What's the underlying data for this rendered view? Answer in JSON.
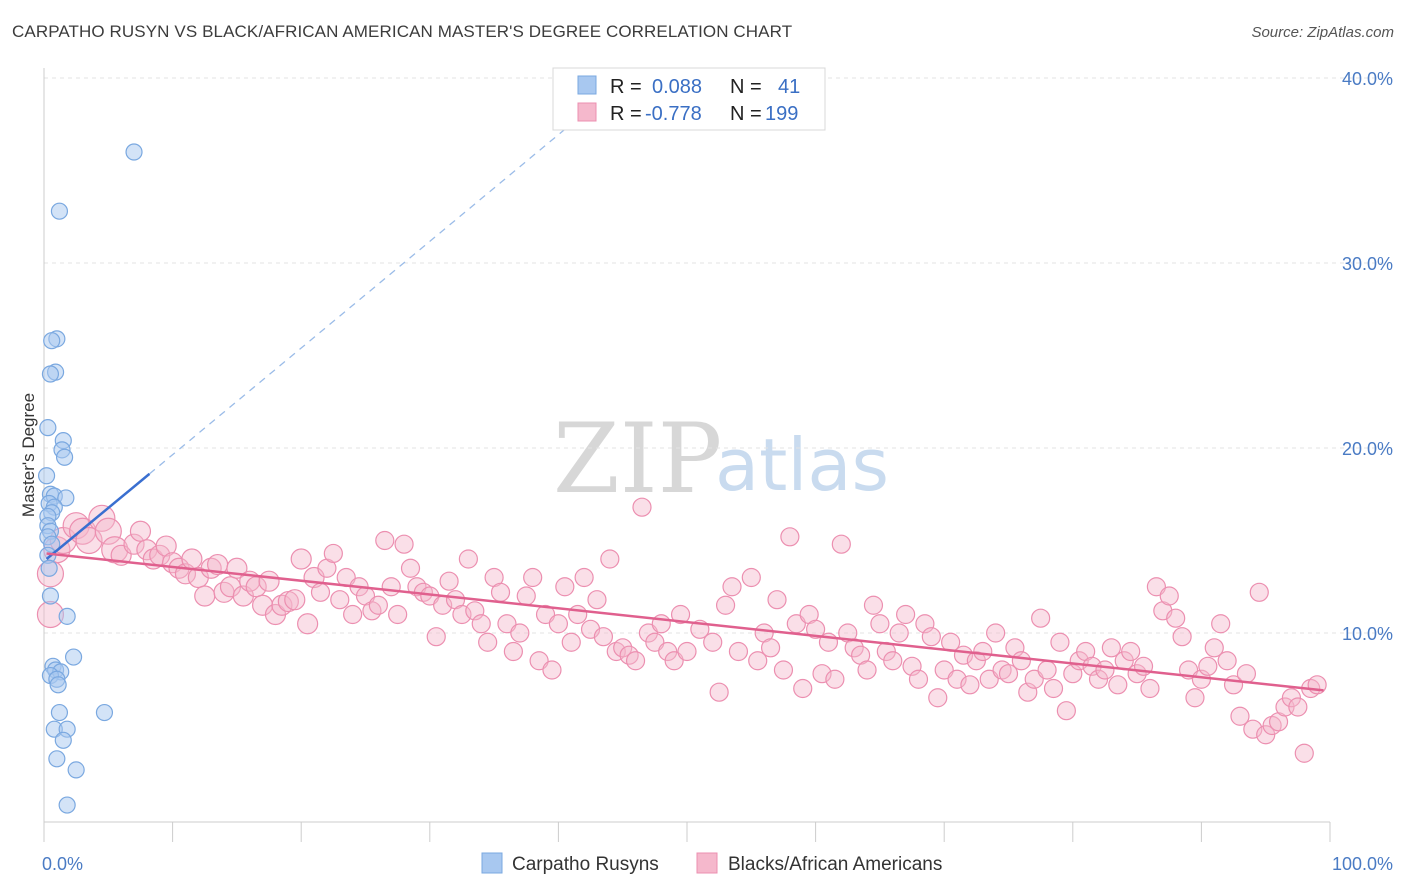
{
  "title": "CARPATHO RUSYN VS BLACK/AFRICAN AMERICAN MASTER'S DEGREE CORRELATION CHART",
  "source": "Source: ZipAtlas.com",
  "watermark": {
    "zip": "ZIP",
    "atlas": "atlas"
  },
  "legend": {
    "rows": [
      {
        "r_label": "R =",
        "r_value": "0.088",
        "n_label": "N =",
        "n_value": "41",
        "color": "#a8c8f0"
      },
      {
        "r_label": "R =",
        "r_value": "-0.778",
        "n_label": "N =",
        "n_value": "199",
        "color": "#f5b8cc"
      }
    ]
  },
  "bottom_legend": [
    {
      "label": "Carpatho Rusyns",
      "color": "#a8c8f0"
    },
    {
      "label": "Blacks/African Americans",
      "color": "#f5b8cc"
    }
  ],
  "chart_data": {
    "type": "scatter",
    "ylabel": "Master's Degree",
    "xlim": [
      0,
      100
    ],
    "ylim": [
      0,
      40
    ],
    "x_tick_labels": [
      "0.0%",
      "100.0%"
    ],
    "y_ticks": [
      10,
      20,
      30,
      40
    ],
    "y_tick_labels": [
      "10.0%",
      "20.0%",
      "30.0%",
      "40.0%"
    ],
    "grid": true,
    "legend_position": "top-center",
    "colors": {
      "blue": "#7aa8e0",
      "pink": "#ec8fb0",
      "blue_line": "#3a6fd0",
      "pink_line": "#e0608e"
    },
    "series": [
      {
        "name": "Carpatho Rusyns",
        "points": [
          [
            7,
            36.0
          ],
          [
            1.2,
            32.8
          ],
          [
            1.0,
            25.9
          ],
          [
            0.6,
            25.8
          ],
          [
            0.9,
            24.1
          ],
          [
            0.5,
            24.0
          ],
          [
            0.3,
            21.1
          ],
          [
            1.5,
            20.4
          ],
          [
            1.4,
            19.9
          ],
          [
            1.6,
            19.5
          ],
          [
            0.2,
            18.5
          ],
          [
            0.5,
            17.5
          ],
          [
            0.8,
            17.4
          ],
          [
            1.7,
            17.3
          ],
          [
            0.4,
            17.0
          ],
          [
            0.8,
            16.8
          ],
          [
            0.6,
            16.5
          ],
          [
            0.3,
            16.3
          ],
          [
            0.3,
            15.8
          ],
          [
            0.5,
            15.5
          ],
          [
            0.3,
            15.2
          ],
          [
            0.6,
            14.8
          ],
          [
            0.3,
            14.2
          ],
          [
            0.4,
            13.5
          ],
          [
            0.5,
            12.0
          ],
          [
            1.8,
            10.9
          ],
          [
            2.3,
            8.7
          ],
          [
            0.7,
            8.2
          ],
          [
            0.9,
            8.0
          ],
          [
            1.3,
            7.9
          ],
          [
            0.5,
            7.7
          ],
          [
            1.0,
            7.5
          ],
          [
            1.1,
            7.2
          ],
          [
            4.7,
            5.7
          ],
          [
            1.2,
            5.7
          ],
          [
            0.8,
            4.8
          ],
          [
            1.8,
            4.8
          ],
          [
            1.5,
            4.2
          ],
          [
            1.0,
            3.2
          ],
          [
            2.5,
            2.6
          ],
          [
            1.8,
            0.7
          ]
        ]
      },
      {
        "name": "Blacks/African Americans",
        "points": [
          [
            0.5,
            13.2
          ],
          [
            0.5,
            11.0
          ],
          [
            1.0,
            14.5
          ],
          [
            1.5,
            15.0
          ],
          [
            2.5,
            15.8
          ],
          [
            3.0,
            15.5
          ],
          [
            3.5,
            15.0
          ],
          [
            4.5,
            16.2
          ],
          [
            5.0,
            15.5
          ],
          [
            5.5,
            14.5
          ],
          [
            6.0,
            14.2
          ],
          [
            7.0,
            14.8
          ],
          [
            7.5,
            15.5
          ],
          [
            8.0,
            14.5
          ],
          [
            8.5,
            14.0
          ],
          [
            9.0,
            14.2
          ],
          [
            9.5,
            14.7
          ],
          [
            10.0,
            13.8
          ],
          [
            10.5,
            13.5
          ],
          [
            11.0,
            13.2
          ],
          [
            11.5,
            14.0
          ],
          [
            12.0,
            13.0
          ],
          [
            12.5,
            12.0
          ],
          [
            13.0,
            13.5
          ],
          [
            13.5,
            13.7
          ],
          [
            14.0,
            12.2
          ],
          [
            14.5,
            12.5
          ],
          [
            15.0,
            13.5
          ],
          [
            15.5,
            12.0
          ],
          [
            16.0,
            12.8
          ],
          [
            16.5,
            12.5
          ],
          [
            17.0,
            11.5
          ],
          [
            17.5,
            12.8
          ],
          [
            18.0,
            11.0
          ],
          [
            18.5,
            11.5
          ],
          [
            19.0,
            11.7
          ],
          [
            19.5,
            11.8
          ],
          [
            20.0,
            14.0
          ],
          [
            20.5,
            10.5
          ],
          [
            21.0,
            13.0
          ],
          [
            21.5,
            12.2
          ],
          [
            22.0,
            13.5
          ],
          [
            22.5,
            14.3
          ],
          [
            23.0,
            11.8
          ],
          [
            23.5,
            13.0
          ],
          [
            24.0,
            11.0
          ],
          [
            24.5,
            12.5
          ],
          [
            25.0,
            12.0
          ],
          [
            25.5,
            11.2
          ],
          [
            26.0,
            11.5
          ],
          [
            26.5,
            15.0
          ],
          [
            27.0,
            12.5
          ],
          [
            27.5,
            11.0
          ],
          [
            28.0,
            14.8
          ],
          [
            28.5,
            13.5
          ],
          [
            29.0,
            12.5
          ],
          [
            29.5,
            12.2
          ],
          [
            30.0,
            12.0
          ],
          [
            30.5,
            9.8
          ],
          [
            31.0,
            11.5
          ],
          [
            31.5,
            12.8
          ],
          [
            32.0,
            11.8
          ],
          [
            32.5,
            11.0
          ],
          [
            33.0,
            14.0
          ],
          [
            33.5,
            11.2
          ],
          [
            34.0,
            10.5
          ],
          [
            34.5,
            9.5
          ],
          [
            35.0,
            13.0
          ],
          [
            35.5,
            12.2
          ],
          [
            36.0,
            10.5
          ],
          [
            36.5,
            9.0
          ],
          [
            37.0,
            10.0
          ],
          [
            37.5,
            12.0
          ],
          [
            38.0,
            13.0
          ],
          [
            38.5,
            8.5
          ],
          [
            39.0,
            11.0
          ],
          [
            39.5,
            8.0
          ],
          [
            40.0,
            10.5
          ],
          [
            40.5,
            12.5
          ],
          [
            41.0,
            9.5
          ],
          [
            41.5,
            11.0
          ],
          [
            42.0,
            13.0
          ],
          [
            42.5,
            10.2
          ],
          [
            43.0,
            11.8
          ],
          [
            43.5,
            9.8
          ],
          [
            44.0,
            14.0
          ],
          [
            44.5,
            9.0
          ],
          [
            45.0,
            9.2
          ],
          [
            45.5,
            8.8
          ],
          [
            46.0,
            8.5
          ],
          [
            46.5,
            16.8
          ],
          [
            47.0,
            10.0
          ],
          [
            47.5,
            9.5
          ],
          [
            48.0,
            10.5
          ],
          [
            48.5,
            9.0
          ],
          [
            49.0,
            8.5
          ],
          [
            49.5,
            11.0
          ],
          [
            50.0,
            9.0
          ],
          [
            51.0,
            10.2
          ],
          [
            52.0,
            9.5
          ],
          [
            52.5,
            6.8
          ],
          [
            53.0,
            11.5
          ],
          [
            53.5,
            12.5
          ],
          [
            54.0,
            9.0
          ],
          [
            55.0,
            13.0
          ],
          [
            55.5,
            8.5
          ],
          [
            56.0,
            10.0
          ],
          [
            56.5,
            9.2
          ],
          [
            57.0,
            11.8
          ],
          [
            57.5,
            8.0
          ],
          [
            58.0,
            15.2
          ],
          [
            58.5,
            10.5
          ],
          [
            59.0,
            7.0
          ],
          [
            59.5,
            11.0
          ],
          [
            60.0,
            10.2
          ],
          [
            60.5,
            7.8
          ],
          [
            61.0,
            9.5
          ],
          [
            61.5,
            7.5
          ],
          [
            62.0,
            14.8
          ],
          [
            62.5,
            10.0
          ],
          [
            63.0,
            9.2
          ],
          [
            63.5,
            8.8
          ],
          [
            64.0,
            8.0
          ],
          [
            64.5,
            11.5
          ],
          [
            65.0,
            10.5
          ],
          [
            65.5,
            9.0
          ],
          [
            66.0,
            8.5
          ],
          [
            66.5,
            10.0
          ],
          [
            67.0,
            11.0
          ],
          [
            67.5,
            8.2
          ],
          [
            68.0,
            7.5
          ],
          [
            68.5,
            10.5
          ],
          [
            69.0,
            9.8
          ],
          [
            69.5,
            6.5
          ],
          [
            70.0,
            8.0
          ],
          [
            70.5,
            9.5
          ],
          [
            71.0,
            7.5
          ],
          [
            71.5,
            8.8
          ],
          [
            72.0,
            7.2
          ],
          [
            72.5,
            8.5
          ],
          [
            73.0,
            9.0
          ],
          [
            73.5,
            7.5
          ],
          [
            74.0,
            10.0
          ],
          [
            74.5,
            8.0
          ],
          [
            75.0,
            7.8
          ],
          [
            75.5,
            9.2
          ],
          [
            76.0,
            8.5
          ],
          [
            76.5,
            6.8
          ],
          [
            77.0,
            7.5
          ],
          [
            77.5,
            10.8
          ],
          [
            78.0,
            8.0
          ],
          [
            78.5,
            7.0
          ],
          [
            79.0,
            9.5
          ],
          [
            79.5,
            5.8
          ],
          [
            80.0,
            7.8
          ],
          [
            80.5,
            8.5
          ],
          [
            81.0,
            9.0
          ],
          [
            81.5,
            8.2
          ],
          [
            82.0,
            7.5
          ],
          [
            82.5,
            8.0
          ],
          [
            83.0,
            9.2
          ],
          [
            83.5,
            7.2
          ],
          [
            84.0,
            8.5
          ],
          [
            84.5,
            9.0
          ],
          [
            85.0,
            7.8
          ],
          [
            85.5,
            8.2
          ],
          [
            86.0,
            7.0
          ],
          [
            86.5,
            12.5
          ],
          [
            87.0,
            11.2
          ],
          [
            87.5,
            12.0
          ],
          [
            88.0,
            10.8
          ],
          [
            88.5,
            9.8
          ],
          [
            89.0,
            8.0
          ],
          [
            89.5,
            6.5
          ],
          [
            90.0,
            7.5
          ],
          [
            90.5,
            8.2
          ],
          [
            91.0,
            9.2
          ],
          [
            91.5,
            10.5
          ],
          [
            92.0,
            8.5
          ],
          [
            92.5,
            7.2
          ],
          [
            93.0,
            5.5
          ],
          [
            93.5,
            7.8
          ],
          [
            94.0,
            4.8
          ],
          [
            94.5,
            12.2
          ],
          [
            95.0,
            4.5
          ],
          [
            95.5,
            5.0
          ],
          [
            96.0,
            5.2
          ],
          [
            96.5,
            6.0
          ],
          [
            97.0,
            6.5
          ],
          [
            97.5,
            6.0
          ],
          [
            98.0,
            3.5
          ],
          [
            98.5,
            7.0
          ],
          [
            99.0,
            7.2
          ]
        ]
      }
    ],
    "trendlines": [
      {
        "series": "Carpatho Rusyns",
        "solid": [
          [
            0.2,
            14.0
          ],
          [
            8.2,
            18.6
          ]
        ],
        "dashed": [
          [
            8.2,
            18.6
          ],
          [
            41.5,
            37.8
          ]
        ]
      },
      {
        "series": "Blacks/African Americans",
        "solid": [
          [
            0.2,
            14.3
          ],
          [
            99.5,
            6.9
          ]
        ]
      }
    ]
  }
}
